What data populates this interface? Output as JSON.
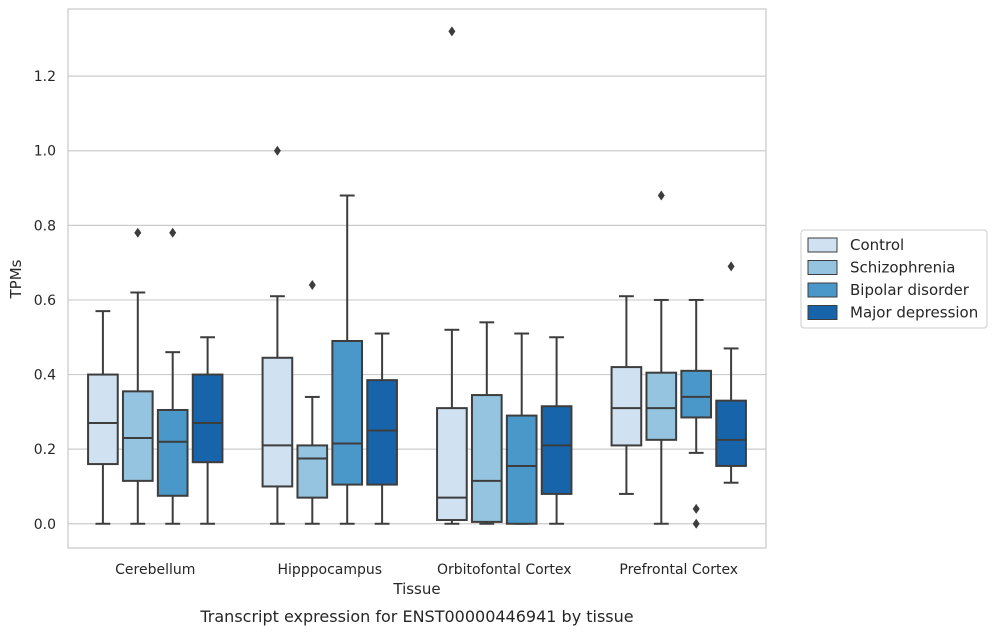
{
  "caption": "Transcript expression for ENST00000446941 by tissue",
  "chart_data": {
    "type": "box",
    "xlabel": "Tissue",
    "ylabel": "TPMs",
    "ylim": [
      -0.065,
      1.38
    ],
    "yticks": [
      "0.0",
      "0.2",
      "0.4",
      "0.6",
      "0.8",
      "1.0",
      "1.2"
    ],
    "ytick_values": [
      0.0,
      0.2,
      0.4,
      0.6,
      0.8,
      1.0,
      1.2
    ],
    "grid": "horizontal",
    "legend_position": "right",
    "categories": [
      "Cerebellum",
      "Hipppocampus",
      "Orbitofontal Cortex",
      "Prefrontal Cortex"
    ],
    "series": [
      {
        "name": "Control",
        "color": "#d0e1f2",
        "boxes": [
          {
            "whisker_low": 0.0,
            "q1": 0.16,
            "median": 0.27,
            "q3": 0.4,
            "whisker_high": 0.57,
            "outliers": []
          },
          {
            "whisker_low": 0.0,
            "q1": 0.1,
            "median": 0.21,
            "q3": 0.445,
            "whisker_high": 0.61,
            "outliers": [
              1.0
            ]
          },
          {
            "whisker_low": 0.0,
            "q1": 0.01,
            "median": 0.07,
            "q3": 0.31,
            "whisker_high": 0.52,
            "outliers": [
              1.32
            ]
          },
          {
            "whisker_low": 0.08,
            "q1": 0.21,
            "median": 0.31,
            "q3": 0.42,
            "whisker_high": 0.61,
            "outliers": []
          }
        ]
      },
      {
        "name": "Schizophrenia",
        "color": "#94c4df",
        "boxes": [
          {
            "whisker_low": 0.0,
            "q1": 0.115,
            "median": 0.23,
            "q3": 0.355,
            "whisker_high": 0.62,
            "outliers": [
              0.78
            ]
          },
          {
            "whisker_low": 0.0,
            "q1": 0.07,
            "median": 0.175,
            "q3": 0.21,
            "whisker_high": 0.34,
            "outliers": [
              0.64
            ]
          },
          {
            "whisker_low": 0.0,
            "q1": 0.005,
            "median": 0.115,
            "q3": 0.345,
            "whisker_high": 0.54,
            "outliers": []
          },
          {
            "whisker_low": 0.0,
            "q1": 0.225,
            "median": 0.31,
            "q3": 0.405,
            "whisker_high": 0.6,
            "outliers": [
              0.88
            ]
          }
        ]
      },
      {
        "name": "Bipolar disorder",
        "color": "#4a98c9",
        "boxes": [
          {
            "whisker_low": 0.0,
            "q1": 0.075,
            "median": 0.22,
            "q3": 0.305,
            "whisker_high": 0.46,
            "outliers": [
              0.78
            ]
          },
          {
            "whisker_low": 0.0,
            "q1": 0.105,
            "median": 0.215,
            "q3": 0.49,
            "whisker_high": 0.88,
            "outliers": []
          },
          {
            "whisker_low": 0.0,
            "q1": 0.0,
            "median": 0.155,
            "q3": 0.29,
            "whisker_high": 0.51,
            "outliers": []
          },
          {
            "whisker_low": 0.19,
            "q1": 0.285,
            "median": 0.34,
            "q3": 0.41,
            "whisker_high": 0.6,
            "outliers": [
              0.04,
              0.0
            ]
          }
        ]
      },
      {
        "name": "Major depression",
        "color": "#1764ab",
        "boxes": [
          {
            "whisker_low": 0.0,
            "q1": 0.165,
            "median": 0.27,
            "q3": 0.4,
            "whisker_high": 0.5,
            "outliers": []
          },
          {
            "whisker_low": 0.0,
            "q1": 0.105,
            "median": 0.25,
            "q3": 0.385,
            "whisker_high": 0.51,
            "outliers": []
          },
          {
            "whisker_low": 0.0,
            "q1": 0.08,
            "median": 0.21,
            "q3": 0.315,
            "whisker_high": 0.5,
            "outliers": []
          },
          {
            "whisker_low": 0.11,
            "q1": 0.155,
            "median": 0.225,
            "q3": 0.33,
            "whisker_high": 0.47,
            "outliers": [
              0.69
            ]
          }
        ]
      }
    ]
  }
}
